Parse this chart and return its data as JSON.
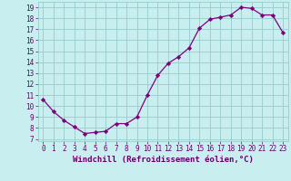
{
  "x": [
    0,
    1,
    2,
    3,
    4,
    5,
    6,
    7,
    8,
    9,
    10,
    11,
    12,
    13,
    14,
    15,
    16,
    17,
    18,
    19,
    20,
    21,
    22,
    23
  ],
  "y": [
    10.6,
    9.5,
    8.7,
    8.1,
    7.5,
    7.6,
    7.7,
    8.4,
    8.4,
    9.0,
    11.0,
    12.8,
    13.9,
    14.5,
    15.3,
    17.1,
    17.9,
    18.1,
    18.3,
    19.0,
    18.9,
    18.3,
    18.3,
    16.7
  ],
  "line_color": "#800080",
  "marker": "D",
  "marker_size": 2.2,
  "bg_color": "#c8eef0",
  "grid_color": "#99cccc",
  "xlabel": "Windchill (Refroidissement éolien,°C)",
  "xlim_min": -0.5,
  "xlim_max": 23.5,
  "ylim_min": 6.8,
  "ylim_max": 19.5,
  "xticks": [
    0,
    1,
    2,
    3,
    4,
    5,
    6,
    7,
    8,
    9,
    10,
    11,
    12,
    13,
    14,
    15,
    16,
    17,
    18,
    19,
    20,
    21,
    22,
    23
  ],
  "yticks": [
    7,
    8,
    9,
    10,
    11,
    12,
    13,
    14,
    15,
    16,
    17,
    18,
    19
  ],
  "tick_fontsize": 5.5,
  "xlabel_fontsize": 6.5,
  "label_color": "#660066"
}
